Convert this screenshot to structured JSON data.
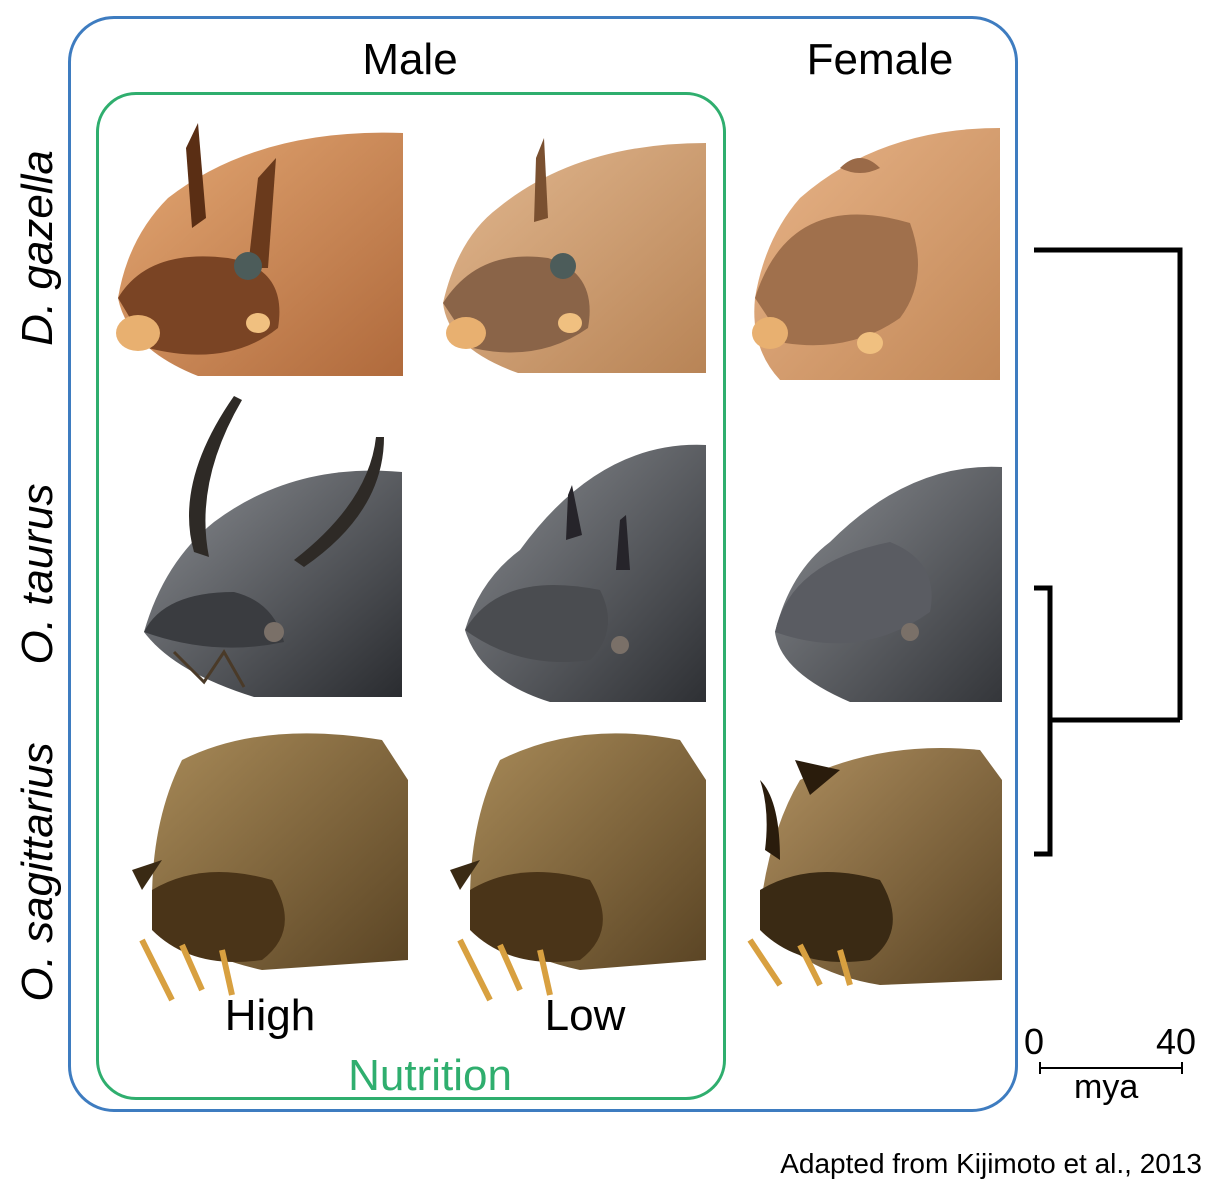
{
  "columns": {
    "male": "Male",
    "female": "Female"
  },
  "species": [
    {
      "name": "D. gazella",
      "tone": "#c8875a",
      "dark": "#6b3a1c"
    },
    {
      "name": "O. taurus",
      "tone": "#5a5c60",
      "dark": "#1e2024"
    },
    {
      "name": "O. sagittarius",
      "tone": "#8a6a38",
      "dark": "#3a2a14"
    }
  ],
  "nutrition": {
    "high": "High",
    "low": "Low",
    "title": "Nutrition"
  },
  "scale": {
    "start": "0",
    "end": "40",
    "unit": "mya"
  },
  "caption": "Adapted from Kijimoto et al., 2013",
  "colors": {
    "outer_border": "#3e7cc0",
    "nutrition_border": "#2fae6e",
    "tree": "#000000"
  },
  "icons": {
    "specimen": "beetle-head-photo-icon"
  }
}
